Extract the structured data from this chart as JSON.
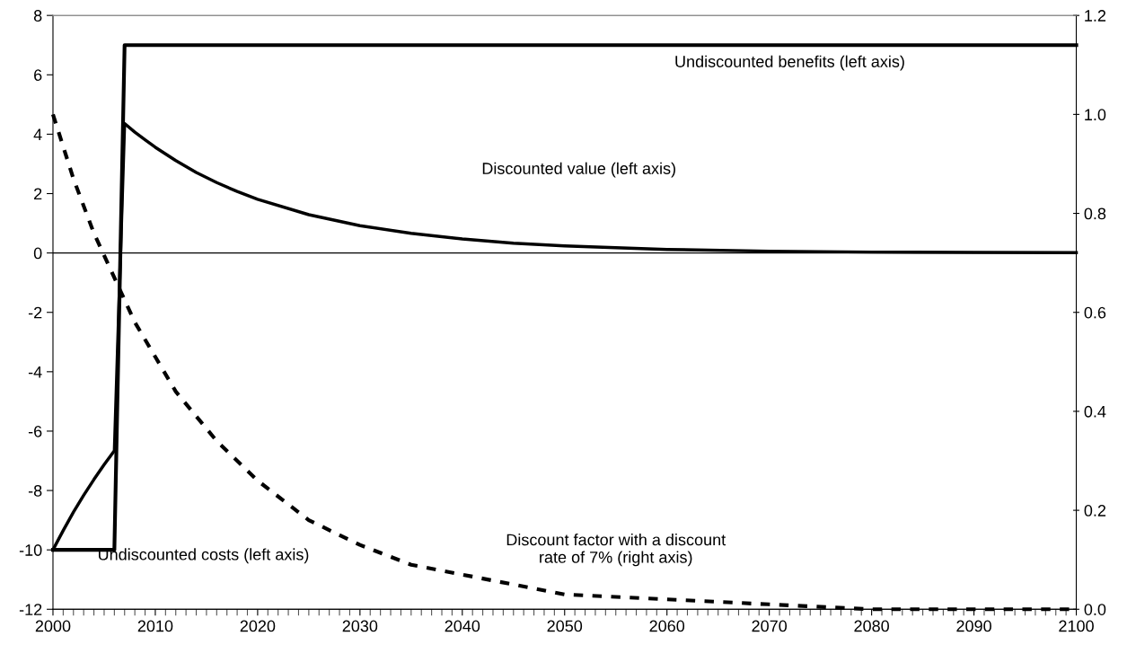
{
  "chart_data": {
    "type": "line",
    "xlim": [
      2000,
      2100
    ],
    "xticks": [
      2000,
      2010,
      2020,
      2030,
      2040,
      2050,
      2060,
      2070,
      2080,
      2090,
      2100
    ],
    "ylim": [
      -12,
      8
    ],
    "yticks": [
      -12,
      -10,
      -8,
      -6,
      -4,
      -2,
      0,
      2,
      4,
      6,
      8
    ],
    "y2lim": [
      0,
      1.2
    ],
    "y2ticks": [
      {
        "value": 0,
        "label": "0.0"
      },
      {
        "value": 0.2,
        "label": "0.2"
      },
      {
        "value": 0.4,
        "label": "0.4"
      },
      {
        "value": 0.6,
        "label": "0.6"
      },
      {
        "value": 0.8,
        "label": "0.8"
      },
      {
        "value": 1.0,
        "label": "1.0"
      },
      {
        "value": 1.2,
        "label": "1.2"
      }
    ],
    "grid": false,
    "series": [
      {
        "color": "#000000",
        "line_style": "solid",
        "x": [
          2000,
          2006,
          2007,
          2100
        ],
        "values": [
          -10,
          -10,
          7,
          7
        ]
      },
      {
        "color": "#000000",
        "line_style": "solid",
        "x": [
          2000,
          2001,
          2002,
          2003,
          2004,
          2005,
          2006,
          2007,
          2008,
          2009,
          2010,
          2012,
          2014,
          2016,
          2018,
          2020,
          2025,
          2030,
          2035,
          2040,
          2045,
          2050,
          2060,
          2070,
          2080,
          2090,
          2100
        ],
        "values": [
          -10,
          -9.35,
          -8.73,
          -8.16,
          -7.63,
          -7.13,
          -6.66,
          4.36,
          4.07,
          3.81,
          3.56,
          3.11,
          2.71,
          2.37,
          2.07,
          1.81,
          1.29,
          0.92,
          0.66,
          0.47,
          0.33,
          0.24,
          0.12,
          0.06,
          0.03,
          0.02,
          0.01
        ]
      },
      {
        "color": "#000000",
        "line_style": "dashed",
        "axis": "y2",
        "x": [
          2000,
          2002,
          2004,
          2006,
          2008,
          2010,
          2012,
          2014,
          2016,
          2018,
          2020,
          2025,
          2030,
          2035,
          2040,
          2045,
          2050,
          2060,
          2070,
          2080,
          2090,
          2100
        ],
        "values": [
          1.0,
          0.87,
          0.76,
          0.67,
          0.58,
          0.51,
          0.44,
          0.39,
          0.34,
          0.3,
          0.26,
          0.18,
          0.13,
          0.09,
          0.07,
          0.05,
          0.03,
          0.02,
          0.01,
          0.0,
          0.0,
          0.0
        ]
      }
    ],
    "ref_lines": [
      {
        "axis": "y",
        "value": 0,
        "color": "#000000"
      }
    ],
    "annotations": [
      "Undiscounted benefits (left axis)",
      "Discounted value (left axis)",
      "Undiscounted costs (left axis)",
      "Discount factor with a discount\nrate of 7% (right axis)"
    ]
  }
}
